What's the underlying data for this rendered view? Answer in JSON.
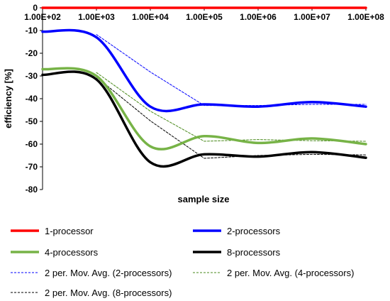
{
  "chart_data": {
    "type": "line",
    "xlabel": "sample size",
    "ylabel": "efficiency [%]",
    "x_scale": "log",
    "x": [
      100,
      1000,
      10000,
      100000,
      1000000,
      10000000,
      100000000
    ],
    "x_tick_labels": [
      "1.00E+02",
      "1.00E+03",
      "1.00E+04",
      "1.00E+05",
      "1.00E+06",
      "1.00E+07",
      "1.00E+08"
    ],
    "ylim": [
      -80,
      0
    ],
    "y_ticks": [
      0,
      -10,
      -20,
      -30,
      -40,
      -50,
      -60,
      -70,
      -80
    ],
    "grid": false,
    "legend_position": "bottom",
    "smooth_lines": true,
    "series": [
      {
        "name": "1-processor",
        "color": "#ff0000",
        "style": "solid",
        "values": [
          0,
          0,
          0,
          0,
          0,
          0,
          0
        ]
      },
      {
        "name": "2-processors",
        "color": "#0000ff",
        "style": "solid",
        "values": [
          -10.5,
          -13,
          -43.5,
          -42.5,
          -43.5,
          -41.5,
          -43.5
        ]
      },
      {
        "name": "4-processors",
        "color": "#77b347",
        "style": "solid",
        "values": [
          -27,
          -30,
          -61,
          -56.5,
          -59.5,
          -57.5,
          -60
        ]
      },
      {
        "name": "8-processors",
        "color": "#000000",
        "style": "solid",
        "values": [
          -29.5,
          -31.5,
          -68,
          -64.5,
          -65.5,
          -63.5,
          -66
        ]
      },
      {
        "name": "2 per. Mov. Avg. (2-processors)",
        "color": "#0000ff",
        "style": "dashed",
        "x": [
          1000,
          10000,
          100000,
          1000000,
          10000000,
          100000000
        ],
        "values": [
          -11.75,
          -28.25,
          -43,
          -43,
          -42.5,
          -42.5
        ]
      },
      {
        "name": "2 per. Mov. Avg. (4-processors)",
        "color": "#4a8a1c",
        "style": "dashed",
        "x": [
          1000,
          10000,
          100000,
          1000000,
          10000000,
          100000000
        ],
        "values": [
          -28.5,
          -45.5,
          -58.75,
          -58,
          -58.5,
          -58.75
        ]
      },
      {
        "name": "2 per. Mov. Avg. (8-processors)",
        "color": "#000000",
        "style": "dashed",
        "x": [
          1000,
          10000,
          100000,
          1000000,
          10000000,
          100000000
        ],
        "values": [
          -30.5,
          -49.75,
          -66.25,
          -65,
          -64.5,
          -64.75
        ]
      }
    ]
  }
}
